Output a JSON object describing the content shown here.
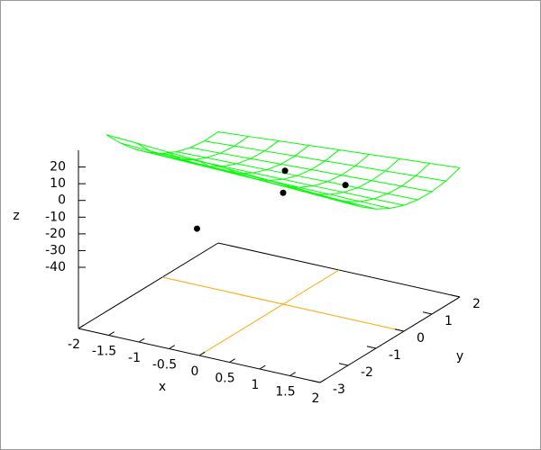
{
  "chart_data": {
    "type": "surface3d",
    "x_label": "x",
    "y_label": "y",
    "z_label": "z",
    "xlim": [
      -2,
      2
    ],
    "ylim": [
      -3,
      2
    ],
    "zlim": [
      -40,
      30
    ],
    "xticks": [
      -2,
      -1.5,
      -1,
      -0.5,
      0,
      0.5,
      1,
      1.5,
      2
    ],
    "yticks": [
      -3,
      -2,
      -1,
      0,
      1,
      2
    ],
    "zticks": [
      -40,
      -30,
      -20,
      -10,
      0,
      10,
      20
    ],
    "zero_axes_color": "#ffa500",
    "surface": {
      "color": "#00ff00",
      "x": [
        -2,
        -1.5,
        -1,
        -0.5,
        0,
        0.5,
        1,
        1.5,
        2
      ],
      "y": [
        -2,
        -1.5,
        -1,
        -0.5,
        0,
        0.5,
        1,
        1.5,
        2
      ],
      "z": [
        [
          29.1,
          28.1,
          27.0,
          26.0,
          24.9,
          23.9,
          22.8,
          21.8,
          20.7
        ],
        [
          19.0,
          18.2,
          17.5,
          16.7,
          16.0,
          15.2,
          14.5,
          13.7,
          13.0
        ],
        [
          10.3,
          9.9,
          9.4,
          9.0,
          8.5,
          8.1,
          7.6,
          7.2,
          6.7
        ],
        [
          3.2,
          3.0,
          2.9,
          2.7,
          2.6,
          2.4,
          2.3,
          2.1,
          2.0
        ],
        [
          -2.5,
          -2.4,
          -2.2,
          -2.1,
          -1.9,
          -1.8,
          -1.6,
          -1.5,
          -1.3
        ],
        [
          -6.7,
          -6.2,
          -5.8,
          -5.3,
          -4.9,
          -4.4,
          -4.0,
          -3.5,
          -3.1
        ],
        [
          -9.3,
          -8.6,
          -7.8,
          -7.1,
          -6.3,
          -5.6,
          -4.8,
          -4.1,
          -3.3
        ],
        [
          -10.5,
          -9.4,
          -8.4,
          -7.3,
          -6.3,
          -5.2,
          -4.2,
          -3.1,
          -2.1
        ],
        [
          -10.1,
          -8.8,
          -7.4,
          -6.1,
          -4.7,
          -3.4,
          -2.0,
          -0.7,
          0.7
        ]
      ]
    },
    "points": {
      "color": "#000000",
      "x": [
        -0.5,
        0,
        -0.2,
        0.8
      ],
      "y": [
        -2,
        0,
        0.5,
        0.5
      ],
      "z": [
        -15,
        -10,
        -3.5,
        -4
      ]
    }
  }
}
